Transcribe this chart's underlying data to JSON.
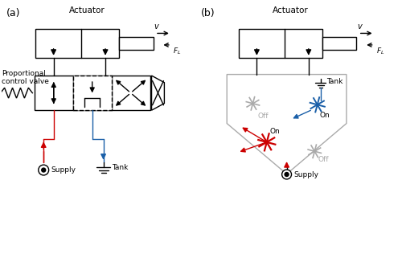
{
  "fig_width": 5.0,
  "fig_height": 3.21,
  "dpi": 100,
  "bg_color": "#ffffff",
  "label_a": "(a)",
  "label_b": "(b)",
  "actuator_label": "Actuator",
  "v_label": "v",
  "fl_label": "$F_L$",
  "supply_label": "Supply",
  "tank_label": "Tank",
  "prop_valve_label": "Proportional\ncontrol valve",
  "on_label": "On",
  "off_label": "Off",
  "red_color": "#cc0000",
  "blue_color": "#1a5fa8",
  "gray_color": "#aaaaaa",
  "black_color": "#000000",
  "lw": 1.0
}
